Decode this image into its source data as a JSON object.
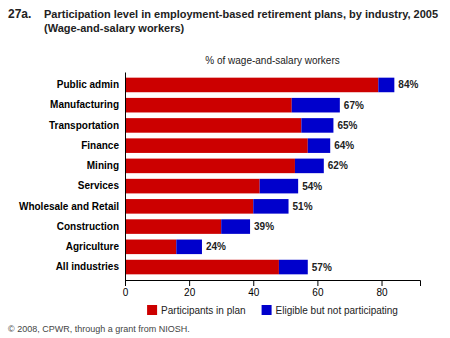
{
  "chart_data": {
    "type": "bar",
    "orientation": "horizontal",
    "stacked": true,
    "title": "Participation level in employment-based retirement plans, by industry, 2005",
    "subtitle": "(Wage-and-salary workers)",
    "xlabel": "% of wage-and-salary workers",
    "annotations": [
      "27a.",
      "© 2008, CPWR, through a grant from NIOSH."
    ],
    "categories": [
      "Public admin",
      "Manufacturing",
      "Transportation",
      "Finance",
      "Mining",
      "Services",
      "Wholesale and Retail",
      "Construction",
      "Agriculture",
      "All industries"
    ],
    "series": [
      {
        "name": "Participants in plan",
        "color": "#cc0000",
        "values": [
          79,
          52,
          55,
          57,
          53,
          42,
          40,
          30,
          16,
          48
        ]
      },
      {
        "name": "Eligible but not participating",
        "color": "#0000cc",
        "values": [
          5,
          15,
          10,
          7,
          9,
          12,
          11,
          9,
          8,
          9
        ]
      }
    ],
    "totals": [
      84,
      67,
      65,
      64,
      62,
      54,
      51,
      39,
      24,
      57
    ],
    "total_labels": [
      "84%",
      "67%",
      "65%",
      "64%",
      "62%",
      "54%",
      "51%",
      "39%",
      "24%",
      "57%"
    ],
    "xlim": [
      0,
      92
    ],
    "xticks": [
      0,
      20,
      40,
      60,
      80
    ],
    "grid": false,
    "legend": "bottom"
  }
}
